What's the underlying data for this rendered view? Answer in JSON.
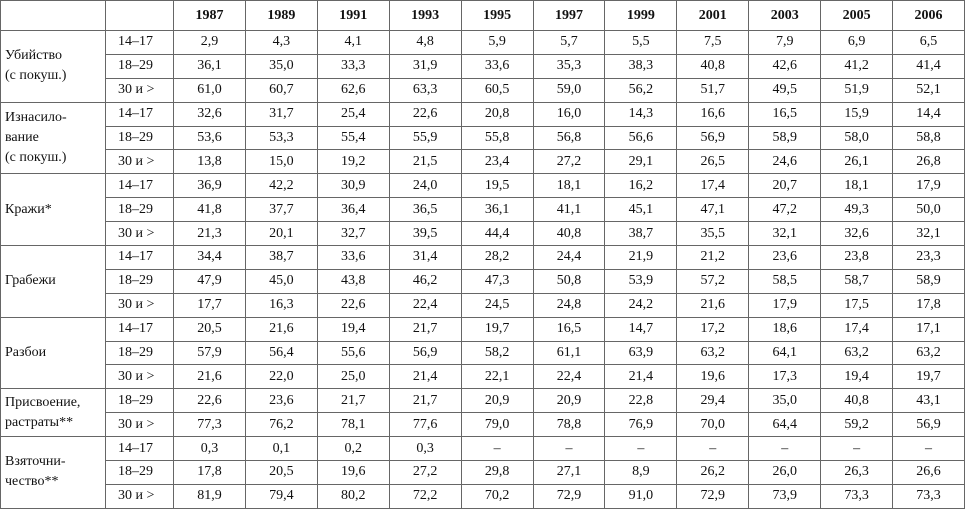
{
  "table": {
    "header": [
      "1987",
      "1989",
      "1991",
      "1993",
      "1995",
      "1997",
      "1999",
      "2001",
      "2003",
      "2005",
      "2006"
    ],
    "groups": [
      {
        "name": [
          "Убийство",
          "(с покуш.)"
        ],
        "rows": [
          {
            "age": "14–17",
            "values": [
              "2,9",
              "4,3",
              "4,1",
              "4,8",
              "5,9",
              "5,7",
              "5,5",
              "7,5",
              "7,9",
              "6,9",
              "6,5"
            ]
          },
          {
            "age": "18–29",
            "values": [
              "36,1",
              "35,0",
              "33,3",
              "31,9",
              "33,6",
              "35,3",
              "38,3",
              "40,8",
              "42,6",
              "41,2",
              "41,4"
            ]
          },
          {
            "age": "30 и >",
            "values": [
              "61,0",
              "60,7",
              "62,6",
              "63,3",
              "60,5",
              "59,0",
              "56,2",
              "51,7",
              "49,5",
              "51,9",
              "52,1"
            ]
          }
        ]
      },
      {
        "name": [
          "Изнасило-",
          "вание",
          "(с покуш.)"
        ],
        "rows": [
          {
            "age": "14–17",
            "values": [
              "32,6",
              "31,7",
              "25,4",
              "22,6",
              "20,8",
              "16,0",
              "14,3",
              "16,6",
              "16,5",
              "15,9",
              "14,4"
            ]
          },
          {
            "age": "18–29",
            "values": [
              "53,6",
              "53,3",
              "55,4",
              "55,9",
              "55,8",
              "56,8",
              "56,6",
              "56,9",
              "58,9",
              "58,0",
              "58,8"
            ]
          },
          {
            "age": "30 и >",
            "values": [
              "13,8",
              "15,0",
              "19,2",
              "21,5",
              "23,4",
              "27,2",
              "29,1",
              "26,5",
              "24,6",
              "26,1",
              "26,8"
            ]
          }
        ]
      },
      {
        "name": [
          "Кражи*"
        ],
        "rows": [
          {
            "age": "14–17",
            "values": [
              "36,9",
              "42,2",
              "30,9",
              "24,0",
              "19,5",
              "18,1",
              "16,2",
              "17,4",
              "20,7",
              "18,1",
              "17,9"
            ]
          },
          {
            "age": "18–29",
            "values": [
              "41,8",
              "37,7",
              "36,4",
              "36,5",
              "36,1",
              "41,1",
              "45,1",
              "47,1",
              "47,2",
              "49,3",
              "50,0"
            ]
          },
          {
            "age": "30 и >",
            "values": [
              "21,3",
              "20,1",
              "32,7",
              "39,5",
              "44,4",
              "40,8",
              "38,7",
              "35,5",
              "32,1",
              "32,6",
              "32,1"
            ]
          }
        ]
      },
      {
        "name": [
          "Грабежи"
        ],
        "rows": [
          {
            "age": "14–17",
            "values": [
              "34,4",
              "38,7",
              "33,6",
              "31,4",
              "28,2",
              "24,4",
              "21,9",
              "21,2",
              "23,6",
              "23,8",
              "23,3"
            ]
          },
          {
            "age": "18–29",
            "values": [
              "47,9",
              "45,0",
              "43,8",
              "46,2",
              "47,3",
              "50,8",
              "53,9",
              "57,2",
              "58,5",
              "58,7",
              "58,9"
            ]
          },
          {
            "age": "30 и >",
            "values": [
              "17,7",
              "16,3",
              "22,6",
              "22,4",
              "24,5",
              "24,8",
              "24,2",
              "21,6",
              "17,9",
              "17,5",
              "17,8"
            ]
          }
        ]
      },
      {
        "name": [
          "Разбои"
        ],
        "rows": [
          {
            "age": "14–17",
            "values": [
              "20,5",
              "21,6",
              "19,4",
              "21,7",
              "19,7",
              "16,5",
              "14,7",
              "17,2",
              "18,6",
              "17,4",
              "17,1"
            ]
          },
          {
            "age": "18–29",
            "values": [
              "57,9",
              "56,4",
              "55,6",
              "56,9",
              "58,2",
              "61,1",
              "63,9",
              "63,2",
              "64,1",
              "63,2",
              "63,2"
            ]
          },
          {
            "age": "30 и >",
            "values": [
              "21,6",
              "22,0",
              "25,0",
              "21,4",
              "22,1",
              "22,4",
              "21,4",
              "19,6",
              "17,3",
              "19,4",
              "19,7"
            ]
          }
        ]
      },
      {
        "name": [
          "Присвоение,",
          "растраты**"
        ],
        "rows": [
          {
            "age": "18–29",
            "values": [
              "22,6",
              "23,6",
              "21,7",
              "21,7",
              "20,9",
              "20,9",
              "22,8",
              "29,4",
              "35,0",
              "40,8",
              "43,1"
            ]
          },
          {
            "age": "30 и >",
            "values": [
              "77,3",
              "76,2",
              "78,1",
              "77,6",
              "79,0",
              "78,8",
              "76,9",
              "70,0",
              "64,4",
              "59,2",
              "56,9"
            ]
          }
        ]
      },
      {
        "name": [
          "Взяточни-",
          "чество**"
        ],
        "rows": [
          {
            "age": "14–17",
            "values": [
              "0,3",
              "0,1",
              "0,2",
              "0,3",
              "–",
              "–",
              "–",
              "–",
              "–",
              "–",
              "–"
            ]
          },
          {
            "age": "18–29",
            "values": [
              "17,8",
              "20,5",
              "19,6",
              "27,2",
              "29,8",
              "27,1",
              "8,9",
              "26,2",
              "26,0",
              "26,3",
              "26,6"
            ]
          },
          {
            "age": "30 и >",
            "values": [
              "81,9",
              "79,4",
              "80,2",
              "72,2",
              "70,2",
              "72,9",
              "91,0",
              "72,9",
              "73,9",
              "73,3",
              "73,3"
            ]
          }
        ]
      }
    ]
  }
}
